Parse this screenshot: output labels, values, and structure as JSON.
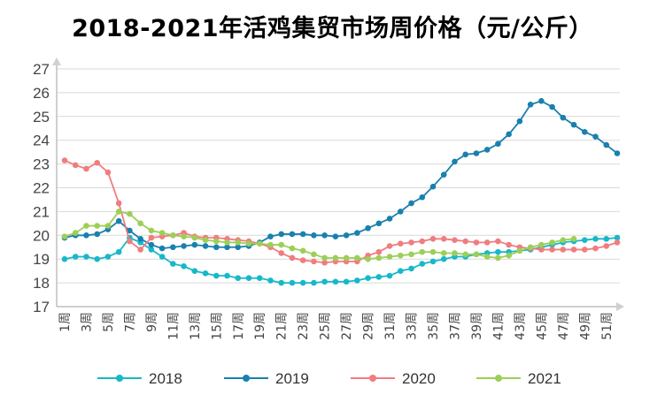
{
  "chart_data": {
    "type": "line",
    "title": "2018-2021年活鸡集贸市场周价格（元/公斤）",
    "xlabel": "",
    "ylabel": "",
    "ylim": [
      17,
      27
    ],
    "yticks": [
      17,
      18,
      19,
      20,
      21,
      22,
      23,
      24,
      25,
      26,
      27
    ],
    "grid": true,
    "legend_position": "bottom",
    "categories": [
      "1周",
      "2周",
      "3周",
      "4周",
      "5周",
      "6周",
      "7周",
      "8周",
      "9周",
      "10周",
      "11周",
      "12周",
      "13周",
      "14周",
      "15周",
      "16周",
      "17周",
      "18周",
      "19周",
      "20周",
      "21周",
      "22周",
      "23周",
      "24周",
      "25周",
      "26周",
      "27周",
      "28周",
      "29周",
      "30周",
      "31周",
      "32周",
      "33周",
      "34周",
      "35周",
      "36周",
      "37周",
      "38周",
      "39周",
      "40周",
      "41周",
      "42周",
      "43周",
      "44周",
      "45周",
      "46周",
      "47周",
      "48周",
      "49周",
      "50周",
      "51周",
      "52周"
    ],
    "tick_labels": [
      "1周",
      "3周",
      "5周",
      "7周",
      "9周",
      "11周",
      "13周",
      "15周",
      "17周",
      "19周",
      "21周",
      "23周",
      "25周",
      "27周",
      "29周",
      "31周",
      "33周",
      "35周",
      "37周",
      "39周",
      "41周",
      "43周",
      "45周",
      "47周",
      "49周",
      "51周"
    ],
    "series": [
      {
        "name": "2018",
        "color": "#17b8c9",
        "values": [
          19.0,
          19.1,
          19.1,
          19.0,
          19.1,
          19.3,
          19.9,
          19.7,
          19.4,
          19.1,
          18.8,
          18.7,
          18.5,
          18.4,
          18.3,
          18.3,
          18.2,
          18.2,
          18.2,
          18.1,
          18.0,
          18.0,
          18.0,
          18.0,
          18.05,
          18.05,
          18.05,
          18.1,
          18.2,
          18.25,
          18.3,
          18.5,
          18.6,
          18.8,
          18.9,
          19.0,
          19.1,
          19.1,
          19.2,
          19.25,
          19.3,
          19.3,
          19.35,
          19.4,
          19.5,
          19.6,
          19.7,
          19.75,
          19.8,
          19.85,
          19.85,
          19.9
        ]
      },
      {
        "name": "2019",
        "color": "#1a80ae",
        "values": [
          19.9,
          20.0,
          20.0,
          20.05,
          20.25,
          20.6,
          20.2,
          19.85,
          19.6,
          19.45,
          19.5,
          19.55,
          19.6,
          19.55,
          19.5,
          19.5,
          19.5,
          19.55,
          19.7,
          19.95,
          20.05,
          20.05,
          20.05,
          20.0,
          20.0,
          19.95,
          20.0,
          20.1,
          20.3,
          20.5,
          20.7,
          21.0,
          21.35,
          21.6,
          22.05,
          22.55,
          23.1,
          23.4,
          23.45,
          23.6,
          23.85,
          24.25,
          24.8,
          25.5,
          25.65,
          25.4,
          24.95,
          24.65,
          24.35,
          24.15,
          23.8,
          23.45
        ]
      },
      {
        "name": "2020",
        "color": "#f07d7f",
        "values": [
          23.15,
          22.95,
          22.8,
          23.05,
          22.65,
          21.35,
          19.75,
          19.4,
          19.9,
          19.95,
          20.0,
          20.1,
          19.95,
          19.9,
          19.9,
          19.85,
          19.8,
          19.75,
          19.65,
          19.5,
          19.25,
          19.05,
          18.95,
          18.9,
          18.85,
          18.9,
          18.9,
          18.9,
          19.15,
          19.3,
          19.55,
          19.65,
          19.7,
          19.75,
          19.85,
          19.85,
          19.8,
          19.75,
          19.7,
          19.7,
          19.75,
          19.6,
          19.5,
          19.45,
          19.4,
          19.4,
          19.4,
          19.4,
          19.4,
          19.45,
          19.55,
          19.7
        ]
      },
      {
        "name": "2021",
        "color": "#9ccf57",
        "values": [
          19.95,
          20.1,
          20.4,
          20.4,
          20.4,
          21.0,
          20.9,
          20.5,
          20.2,
          20.1,
          20.0,
          19.95,
          19.9,
          19.8,
          19.75,
          19.7,
          19.7,
          19.65,
          19.65,
          19.6,
          19.6,
          19.45,
          19.35,
          19.2,
          19.05,
          19.05,
          19.05,
          19.05,
          19.0,
          19.05,
          19.1,
          19.15,
          19.2,
          19.3,
          19.3,
          19.25,
          19.25,
          19.2,
          19.2,
          19.1,
          19.05,
          19.15,
          19.35,
          19.5,
          19.6,
          19.7,
          19.8,
          19.85,
          null,
          null,
          null,
          null
        ]
      }
    ]
  }
}
